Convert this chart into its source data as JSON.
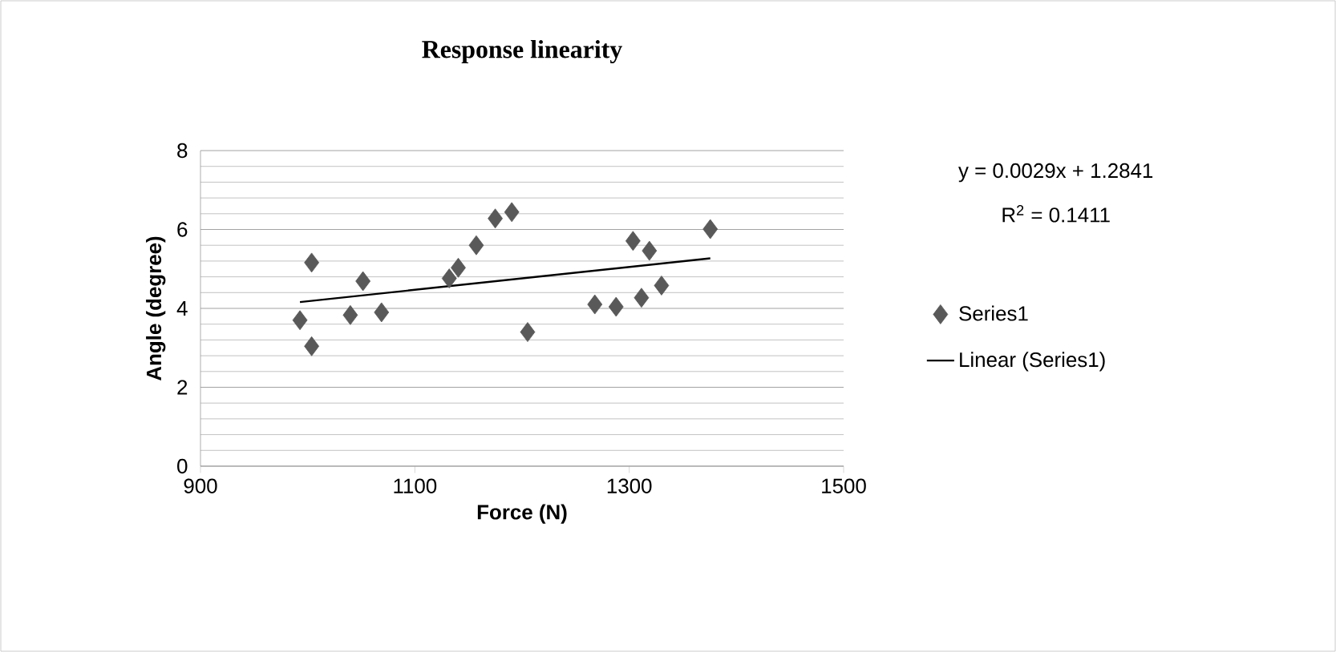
{
  "chart_data": {
    "type": "scatter",
    "title": "Response linearity",
    "xlabel": "Force (N)",
    "ylabel": "Angle (degree)",
    "xlim": [
      900,
      1500
    ],
    "xticks": [
      900,
      1100,
      1300,
      1500
    ],
    "ylim": [
      0,
      8
    ],
    "yticks": [
      0,
      2,
      4,
      6,
      8
    ],
    "grid": "y",
    "legend": "right",
    "annotations": [
      "y = 0.0029x + 1.2841",
      "R$^{2}$ = 0.1411"
    ],
    "series": [
      {
        "name": "Series1",
        "color": "#595959",
        "marker": "diamond",
        "x": [
          992.8,
          1003.7,
          1003.7,
          1039.8,
          1051.6,
          1068.9,
          1132.1,
          1140.5,
          1157.3,
          1175,
          1190.4,
          1205.2,
          1267.9,
          1287.7,
          1303.5,
          1311.4,
          1318.8,
          1330.1,
          1375.6
        ],
        "values": [
          3.7,
          5.16,
          3.04,
          3.83,
          4.69,
          3.9,
          4.76,
          5.03,
          5.6,
          6.28,
          6.44,
          3.4,
          4.1,
          4.04,
          5.71,
          4.27,
          5.46,
          4.58,
          6.01
        ]
      },
      {
        "name": "Linear (Series1)",
        "type": "line",
        "marker": "none",
        "color": "#000000",
        "x": [
          992.8,
          1375.6
        ],
        "values": [
          4.16,
          5.27
        ]
      }
    ]
  }
}
